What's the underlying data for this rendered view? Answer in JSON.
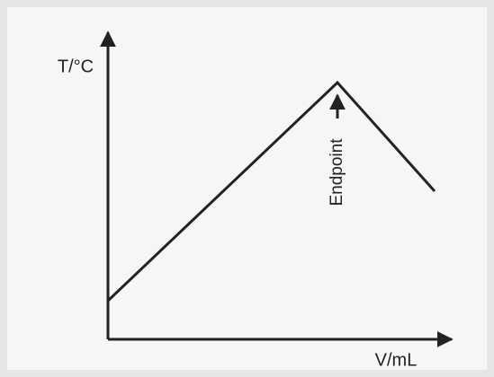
{
  "axes": {
    "y_label": "T/°C",
    "x_label": "V/mL"
  },
  "annotation": "Endpoint"
}
